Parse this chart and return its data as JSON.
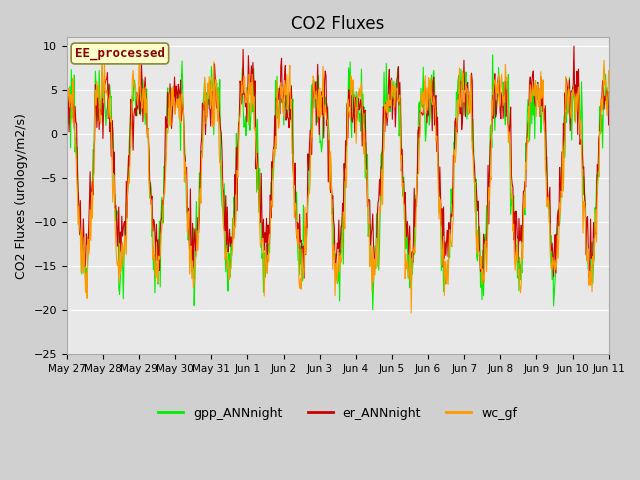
{
  "title": "CO2 Fluxes",
  "ylabel": "CO2 Fluxes (urology/m2/s)",
  "ylim": [
    -25,
    11
  ],
  "yticks": [
    10,
    5,
    0,
    -5,
    -10,
    -15,
    -20,
    -25
  ],
  "fig_bg_color": "#d0d0d0",
  "plot_bg_color": "#e8e8e8",
  "color_gpp": "#00ee00",
  "color_er": "#cc0000",
  "color_wc": "#ff9900",
  "legend_label": "EE_processed",
  "legend_text_color": "#8b0000",
  "legend_box_facecolor": "#ffffcc",
  "legend_box_edgecolor": "#888833",
  "x_labels": [
    "May 27",
    "May 28",
    "May 29",
    "May 30",
    "May 31",
    "Jun 1",
    "Jun 2",
    "Jun 3",
    "Jun 4",
    "Jun 5",
    "Jun 6",
    "Jun 7",
    "Jun 8",
    "Jun 9",
    "Jun 10",
    "Jun 11"
  ],
  "legend_entries": [
    "gpp_ANNnight",
    "er_ANNnight",
    "wc_gf"
  ]
}
